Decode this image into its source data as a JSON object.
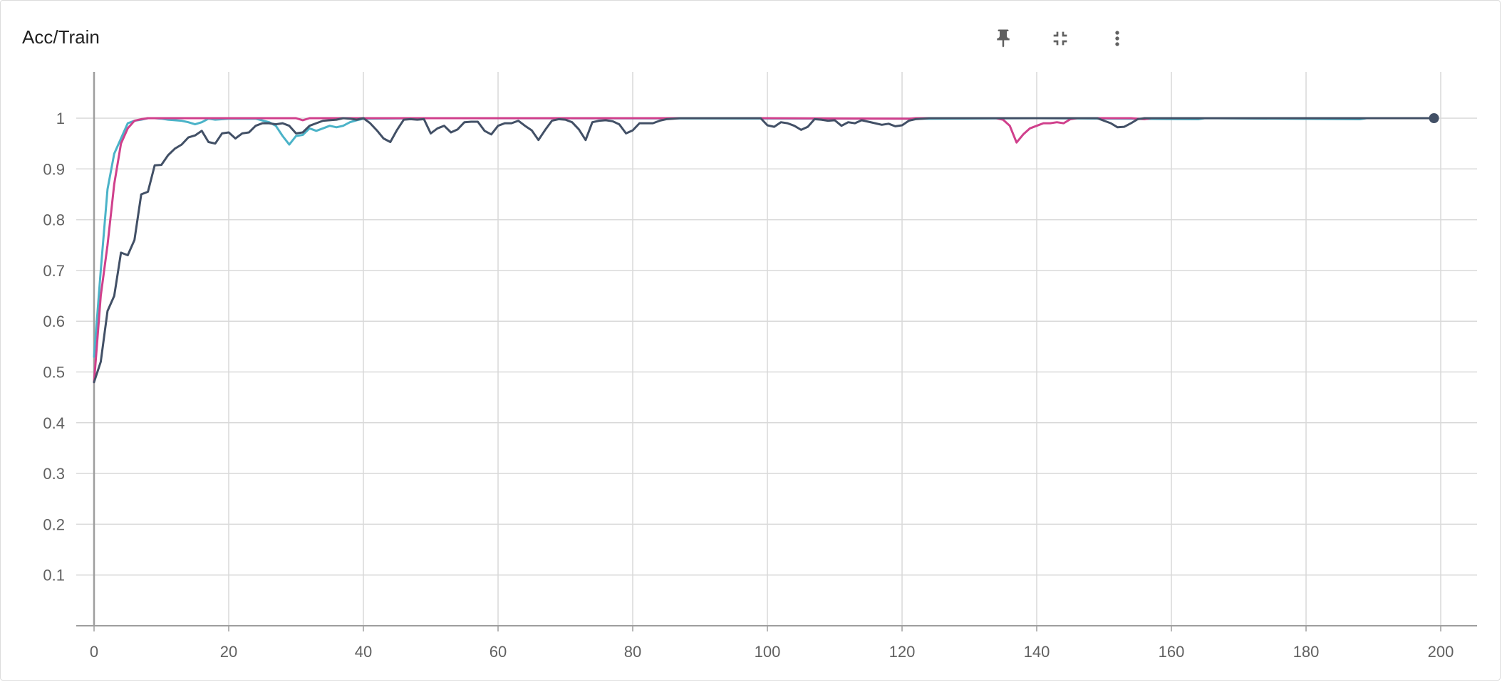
{
  "card": {
    "title": "Acc/Train",
    "actions": [
      {
        "name": "pin-button",
        "icon": "pin-icon"
      },
      {
        "name": "collapse-button",
        "icon": "fullscreen-exit-icon"
      },
      {
        "name": "more-options-button",
        "icon": "more-vert-icon"
      }
    ]
  },
  "chart_data": {
    "type": "line",
    "title": "Acc/Train",
    "xlabel": "",
    "ylabel": "",
    "xlim": [
      0,
      200
    ],
    "ylim": [
      0,
      1
    ],
    "x_ticks": [
      0,
      20,
      40,
      60,
      80,
      100,
      120,
      140,
      160,
      180,
      200
    ],
    "y_ticks": [
      0.1,
      0.2,
      0.3,
      0.4,
      0.5,
      0.6,
      0.7,
      0.8,
      0.9,
      1
    ],
    "grid": true,
    "legend": "none",
    "series": [
      {
        "color": "#4bb3c8",
        "points": [
          [
            0,
            0.53
          ],
          [
            1,
            0.7
          ],
          [
            2,
            0.86
          ],
          [
            3,
            0.93
          ],
          [
            4,
            0.96
          ],
          [
            5,
            0.99
          ],
          [
            6,
            0.995
          ],
          [
            7,
            0.997
          ],
          [
            8,
            1
          ],
          [
            9,
            1
          ],
          [
            10,
            0.999
          ],
          [
            11,
            0.997
          ],
          [
            12,
            0.996
          ],
          [
            13,
            0.995
          ],
          [
            14,
            0.992
          ],
          [
            15,
            0.988
          ],
          [
            16,
            0.992
          ],
          [
            17,
            0.999
          ],
          [
            18,
            0.997
          ],
          [
            20,
            0.999
          ],
          [
            24,
            0.999
          ],
          [
            26,
            0.992
          ],
          [
            27,
            0.985
          ],
          [
            28,
            0.965
          ],
          [
            29,
            0.948
          ],
          [
            30,
            0.965
          ],
          [
            31,
            0.967
          ],
          [
            32,
            0.98
          ],
          [
            33,
            0.975
          ],
          [
            34,
            0.98
          ],
          [
            35,
            0.985
          ],
          [
            36,
            0.982
          ],
          [
            37,
            0.985
          ],
          [
            38,
            0.992
          ],
          [
            39,
            0.996
          ],
          [
            40,
            0.999
          ],
          [
            50,
            1
          ],
          [
            124,
            0.999
          ],
          [
            140,
            1
          ],
          [
            164,
            0.998
          ],
          [
            165,
            1
          ],
          [
            188,
            0.998
          ],
          [
            189,
            1
          ],
          [
            199,
            1
          ]
        ]
      },
      {
        "color": "#d0408c",
        "points": [
          [
            0,
            0.48
          ],
          [
            1,
            0.65
          ],
          [
            2,
            0.75
          ],
          [
            3,
            0.87
          ],
          [
            4,
            0.95
          ],
          [
            5,
            0.98
          ],
          [
            6,
            0.995
          ],
          [
            7,
            0.998
          ],
          [
            8,
            1
          ],
          [
            9,
            1
          ],
          [
            20,
            1
          ],
          [
            30,
            1
          ],
          [
            31,
            0.996
          ],
          [
            32,
            1
          ],
          [
            50,
            1
          ],
          [
            100,
            1
          ],
          [
            121,
            0.999
          ],
          [
            122,
            1
          ],
          [
            134,
            1
          ],
          [
            135,
            0.997
          ],
          [
            136,
            0.985
          ],
          [
            137,
            0.952
          ],
          [
            138,
            0.968
          ],
          [
            139,
            0.98
          ],
          [
            140,
            0.985
          ],
          [
            141,
            0.99
          ],
          [
            142,
            0.99
          ],
          [
            143,
            0.992
          ],
          [
            144,
            0.99
          ],
          [
            145,
            0.998
          ],
          [
            146,
            1
          ],
          [
            150,
            1
          ],
          [
            154,
            1
          ],
          [
            156,
            0.998
          ],
          [
            157,
            1
          ],
          [
            199,
            1
          ]
        ]
      },
      {
        "color": "#425066",
        "points": [
          [
            0,
            0.48
          ],
          [
            1,
            0.52
          ],
          [
            2,
            0.62
          ],
          [
            3,
            0.65
          ],
          [
            4,
            0.735
          ],
          [
            5,
            0.73
          ],
          [
            6,
            0.76
          ],
          [
            7,
            0.85
          ],
          [
            8,
            0.855
          ],
          [
            9,
            0.907
          ],
          [
            10,
            0.908
          ],
          [
            11,
            0.927
          ],
          [
            12,
            0.94
          ],
          [
            13,
            0.948
          ],
          [
            14,
            0.962
          ],
          [
            15,
            0.966
          ],
          [
            16,
            0.975
          ],
          [
            17,
            0.953
          ],
          [
            18,
            0.95
          ],
          [
            19,
            0.97
          ],
          [
            20,
            0.972
          ],
          [
            21,
            0.96
          ],
          [
            22,
            0.97
          ],
          [
            23,
            0.972
          ],
          [
            24,
            0.985
          ],
          [
            25,
            0.99
          ],
          [
            26,
            0.99
          ],
          [
            27,
            0.988
          ],
          [
            28,
            0.99
          ],
          [
            29,
            0.985
          ],
          [
            30,
            0.97
          ],
          [
            31,
            0.972
          ],
          [
            32,
            0.985
          ],
          [
            33,
            0.99
          ],
          [
            34,
            0.995
          ],
          [
            35,
            0.996
          ],
          [
            36,
            0.997
          ],
          [
            37,
            1
          ],
          [
            38,
            0.999
          ],
          [
            39,
            0.997
          ],
          [
            40,
            1
          ],
          [
            41,
            0.99
          ],
          [
            42,
            0.976
          ],
          [
            43,
            0.96
          ],
          [
            44,
            0.953
          ],
          [
            45,
            0.977
          ],
          [
            46,
            0.997
          ],
          [
            47,
            0.998
          ],
          [
            48,
            0.997
          ],
          [
            49,
            0.998
          ],
          [
            50,
            0.97
          ],
          [
            51,
            0.98
          ],
          [
            52,
            0.985
          ],
          [
            53,
            0.972
          ],
          [
            54,
            0.978
          ],
          [
            55,
            0.992
          ],
          [
            56,
            0.993
          ],
          [
            57,
            0.993
          ],
          [
            58,
            0.975
          ],
          [
            59,
            0.968
          ],
          [
            60,
            0.985
          ],
          [
            61,
            0.99
          ],
          [
            62,
            0.99
          ],
          [
            63,
            0.995
          ],
          [
            64,
            0.985
          ],
          [
            65,
            0.976
          ],
          [
            66,
            0.957
          ],
          [
            67,
            0.977
          ],
          [
            68,
            0.995
          ],
          [
            69,
            0.998
          ],
          [
            70,
            0.997
          ],
          [
            71,
            0.992
          ],
          [
            72,
            0.978
          ],
          [
            73,
            0.957
          ],
          [
            74,
            0.992
          ],
          [
            75,
            0.995
          ],
          [
            76,
            0.996
          ],
          [
            77,
            0.994
          ],
          [
            78,
            0.988
          ],
          [
            79,
            0.97
          ],
          [
            80,
            0.976
          ],
          [
            81,
            0.99
          ],
          [
            82,
            0.99
          ],
          [
            83,
            0.99
          ],
          [
            84,
            0.995
          ],
          [
            85,
            0.998
          ],
          [
            86,
            0.999
          ],
          [
            87,
            1
          ],
          [
            99,
            1
          ],
          [
            100,
            0.986
          ],
          [
            101,
            0.983
          ],
          [
            102,
            0.992
          ],
          [
            103,
            0.99
          ],
          [
            104,
            0.985
          ],
          [
            105,
            0.977
          ],
          [
            106,
            0.983
          ],
          [
            107,
            0.998
          ],
          [
            108,
            0.997
          ],
          [
            109,
            0.995
          ],
          [
            110,
            0.996
          ],
          [
            111,
            0.985
          ],
          [
            112,
            0.992
          ],
          [
            113,
            0.99
          ],
          [
            114,
            0.996
          ],
          [
            115,
            0.993
          ],
          [
            116,
            0.99
          ],
          [
            117,
            0.987
          ],
          [
            118,
            0.989
          ],
          [
            119,
            0.984
          ],
          [
            120,
            0.986
          ],
          [
            121,
            0.995
          ],
          [
            122,
            0.998
          ],
          [
            123,
            0.999
          ],
          [
            124,
            1
          ],
          [
            145,
            1
          ],
          [
            149,
            1
          ],
          [
            150,
            0.995
          ],
          [
            151,
            0.99
          ],
          [
            152,
            0.982
          ],
          [
            153,
            0.983
          ],
          [
            154,
            0.99
          ],
          [
            155,
            0.998
          ],
          [
            156,
            1
          ],
          [
            199,
            1
          ]
        ]
      }
    ]
  }
}
